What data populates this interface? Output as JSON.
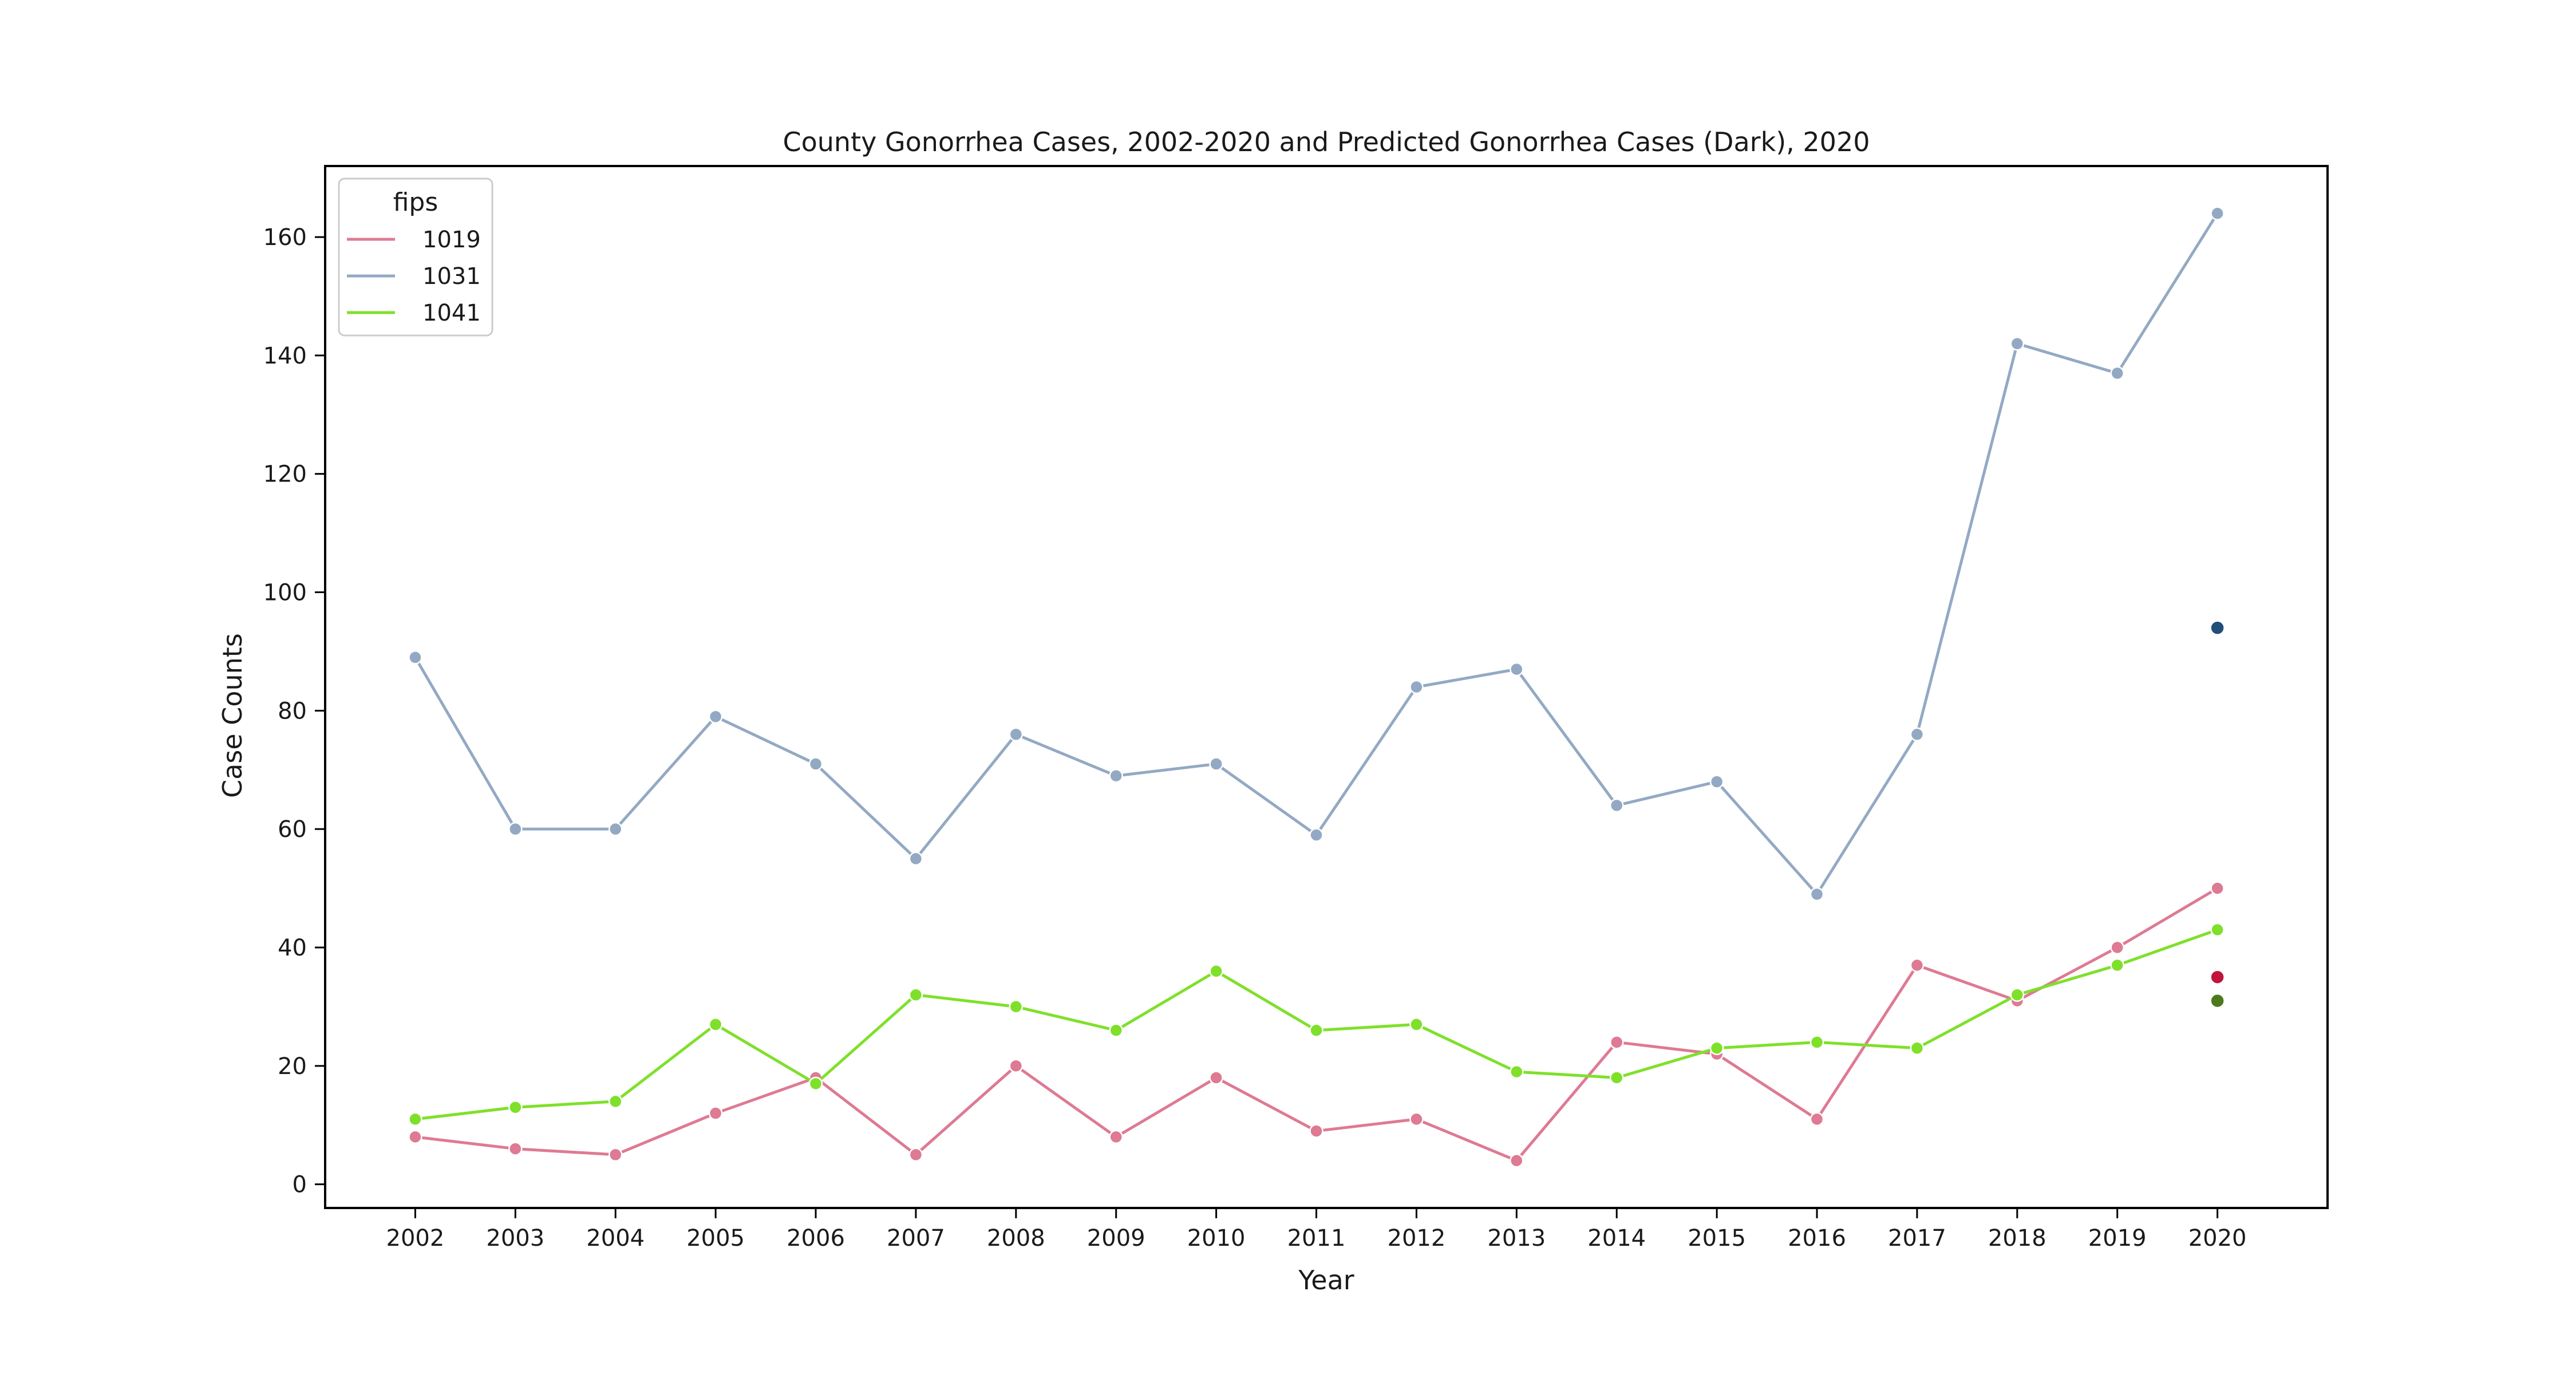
{
  "chart_data": {
    "type": "line",
    "title": "County Gonorrhea Cases, 2002-2020 and Predicted Gonorrhea Cases (Dark), 2020",
    "xlabel": "Year",
    "ylabel": "Case Counts",
    "x": [
      2002,
      2003,
      2004,
      2005,
      2006,
      2007,
      2008,
      2009,
      2010,
      2011,
      2012,
      2013,
      2014,
      2015,
      2016,
      2017,
      2018,
      2019,
      2020
    ],
    "xlim": [
      2001.1,
      2021.1
    ],
    "ylim": [
      -4,
      172
    ],
    "yticks": [
      0,
      20,
      40,
      60,
      80,
      100,
      120,
      140,
      160
    ],
    "grid": false,
    "legend": {
      "title": "fips",
      "position": "top-left"
    },
    "series": [
      {
        "name": "1019",
        "color": "#de7a93",
        "values": [
          8,
          6,
          5,
          12,
          18,
          5,
          20,
          8,
          18,
          9,
          11,
          4,
          24,
          22,
          11,
          37,
          31,
          40,
          50
        ]
      },
      {
        "name": "1031",
        "color": "#93a9c3",
        "values": [
          89,
          60,
          60,
          79,
          71,
          55,
          76,
          69,
          71,
          59,
          84,
          87,
          64,
          68,
          49,
          76,
          142,
          137,
          164
        ]
      },
      {
        "name": "1041",
        "color": "#7fe02a",
        "values": [
          11,
          13,
          14,
          27,
          17,
          32,
          30,
          26,
          36,
          26,
          27,
          19,
          18,
          23,
          24,
          23,
          32,
          37,
          43
        ]
      }
    ],
    "predicted": [
      {
        "fips": "1019",
        "x": 2020,
        "y": 35,
        "color": "#c0143c"
      },
      {
        "fips": "1031",
        "x": 2020,
        "y": 94,
        "color": "#1f4e79"
      },
      {
        "fips": "1041",
        "x": 2020,
        "y": 31,
        "color": "#4d7a1a"
      }
    ]
  }
}
